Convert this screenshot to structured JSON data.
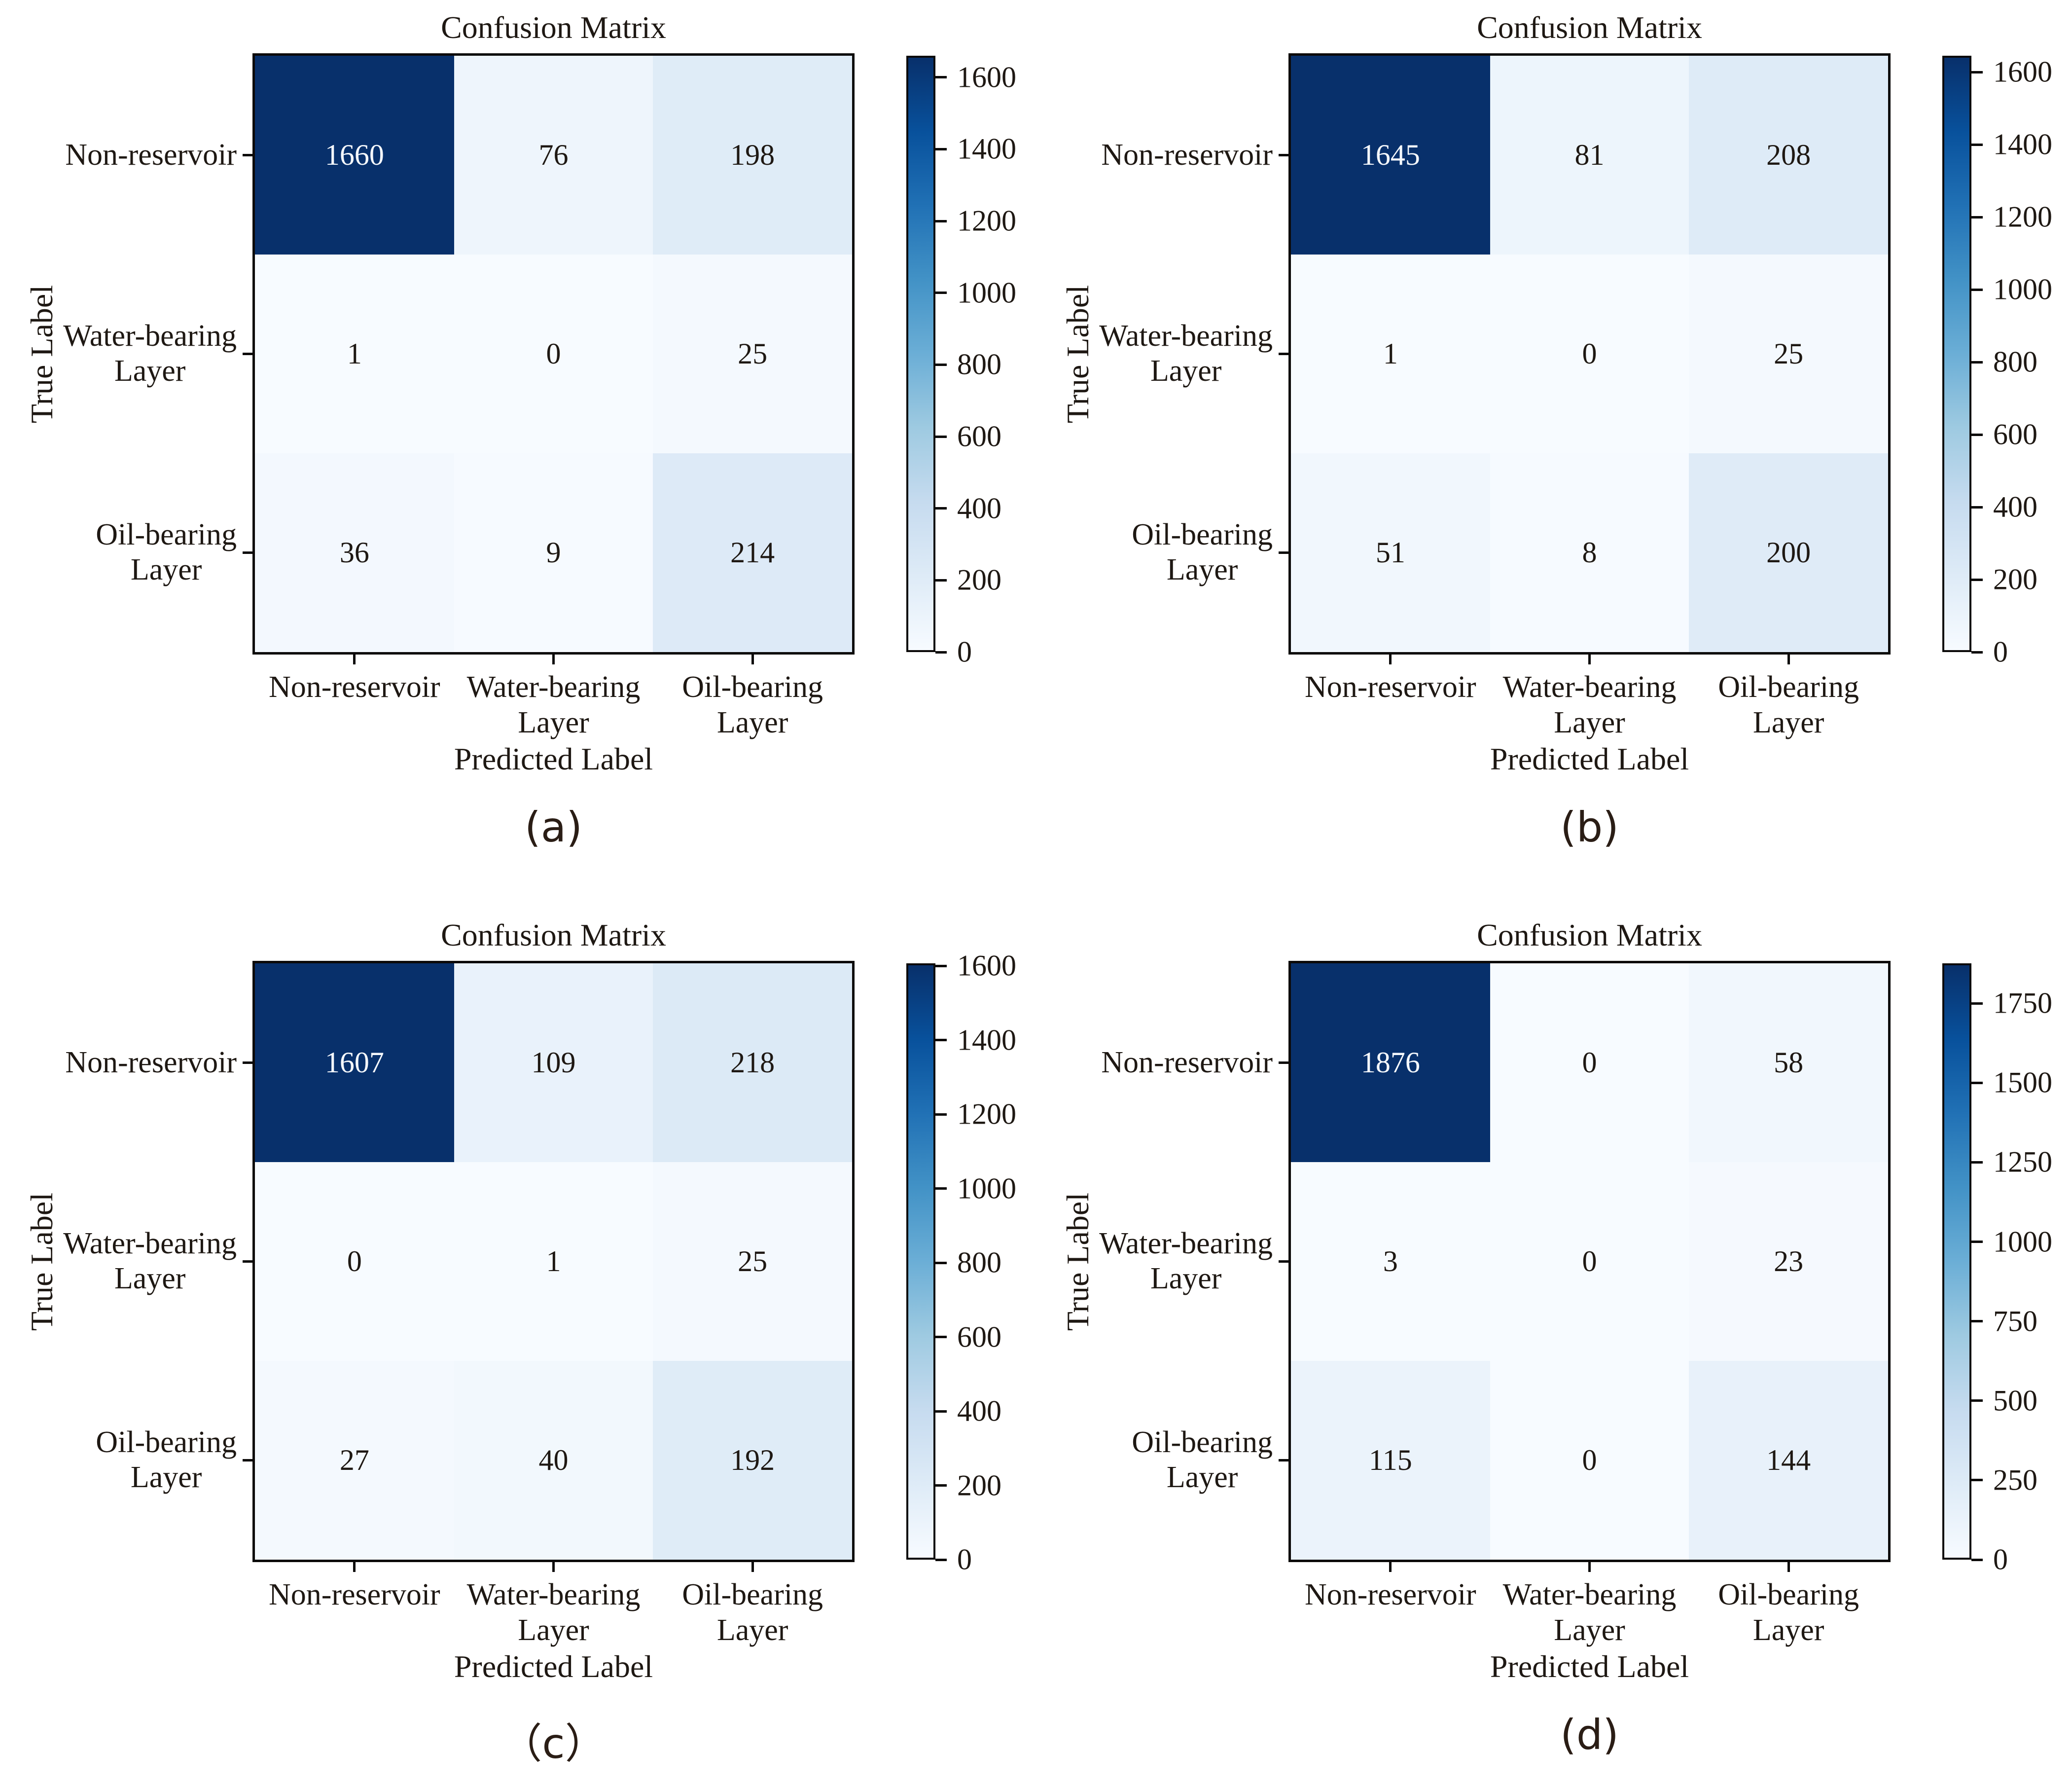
{
  "figure": {
    "background": "#ffffff",
    "text_color": "#1e1813",
    "line_color": "#0c0a09",
    "colormap_name": "Blues",
    "colormap_stops": [
      "#f7fbff",
      "#deebf7",
      "#c6dbef",
      "#9ecae1",
      "#6baed6",
      "#4292c6",
      "#2171b5",
      "#08519c",
      "#08306b"
    ]
  },
  "chart_data": [
    {
      "type": "heatmap",
      "panel_label": "(a)",
      "title": "Confusion Matrix",
      "xlabel": "Predicted Label",
      "ylabel": "True Label",
      "x_tick_labels": [
        [
          "Non-reservoir"
        ],
        [
          "Water-bearing",
          "Layer"
        ],
        [
          "Oil-bearing",
          "Layer"
        ]
      ],
      "y_tick_labels": [
        [
          "Non-reservoir"
        ],
        [
          "Water-bearing",
          "Layer"
        ],
        [
          "Oil-bearing",
          "Layer"
        ]
      ],
      "rows": [
        [
          1660,
          76,
          198
        ],
        [
          1,
          0,
          25
        ],
        [
          36,
          9,
          214
        ]
      ],
      "vmin": 0,
      "vmax": 1660,
      "colorbar_ticks": [
        0,
        200,
        400,
        600,
        800,
        1000,
        1200,
        1400,
        1600
      ],
      "legend_position": "right",
      "grid": false
    },
    {
      "type": "heatmap",
      "panel_label": "(b)",
      "title": "Confusion Matrix",
      "xlabel": "Predicted Label",
      "ylabel": "True Label",
      "x_tick_labels": [
        [
          "Non-reservoir"
        ],
        [
          "Water-bearing",
          "Layer"
        ],
        [
          "Oil-bearing",
          "Layer"
        ]
      ],
      "y_tick_labels": [
        [
          "Non-reservoir"
        ],
        [
          "Water-bearing",
          "Layer"
        ],
        [
          "Oil-bearing",
          "Layer"
        ]
      ],
      "rows": [
        [
          1645,
          81,
          208
        ],
        [
          1,
          0,
          25
        ],
        [
          51,
          8,
          200
        ]
      ],
      "vmin": 0,
      "vmax": 1645,
      "colorbar_ticks": [
        0,
        200,
        400,
        600,
        800,
        1000,
        1200,
        1400,
        1600
      ],
      "legend_position": "right",
      "grid": false
    },
    {
      "type": "heatmap",
      "panel_label": "（c）",
      "title": "Confusion Matrix",
      "xlabel": "Predicted Label",
      "ylabel": "True Label",
      "x_tick_labels": [
        [
          "Non-reservoir"
        ],
        [
          "Water-bearing",
          "Layer"
        ],
        [
          "Oil-bearing",
          "Layer"
        ]
      ],
      "y_tick_labels": [
        [
          "Non-reservoir"
        ],
        [
          "Water-bearing",
          "Layer"
        ],
        [
          "Oil-bearing",
          "Layer"
        ]
      ],
      "rows": [
        [
          1607,
          109,
          218
        ],
        [
          0,
          1,
          25
        ],
        [
          27,
          40,
          192
        ]
      ],
      "vmin": 0,
      "vmax": 1607,
      "colorbar_ticks": [
        0,
        200,
        400,
        600,
        800,
        1000,
        1200,
        1400,
        1600
      ],
      "legend_position": "right",
      "grid": false
    },
    {
      "type": "heatmap",
      "panel_label": "(d)",
      "title": "Confusion Matrix",
      "xlabel": "Predicted Label",
      "ylabel": "True Label",
      "x_tick_labels": [
        [
          "Non-reservoir"
        ],
        [
          "Water-bearing",
          "Layer"
        ],
        [
          "Oil-bearing",
          "Layer"
        ]
      ],
      "y_tick_labels": [
        [
          "Non-reservoir"
        ],
        [
          "Water-bearing",
          "Layer"
        ],
        [
          "Oil-bearing",
          "Layer"
        ]
      ],
      "rows": [
        [
          1876,
          0,
          58
        ],
        [
          3,
          0,
          23
        ],
        [
          115,
          0,
          144
        ]
      ],
      "vmin": 0,
      "vmax": 1876,
      "colorbar_ticks": [
        0,
        250,
        500,
        750,
        1000,
        1250,
        1500,
        1750
      ],
      "legend_position": "right",
      "grid": false
    }
  ]
}
